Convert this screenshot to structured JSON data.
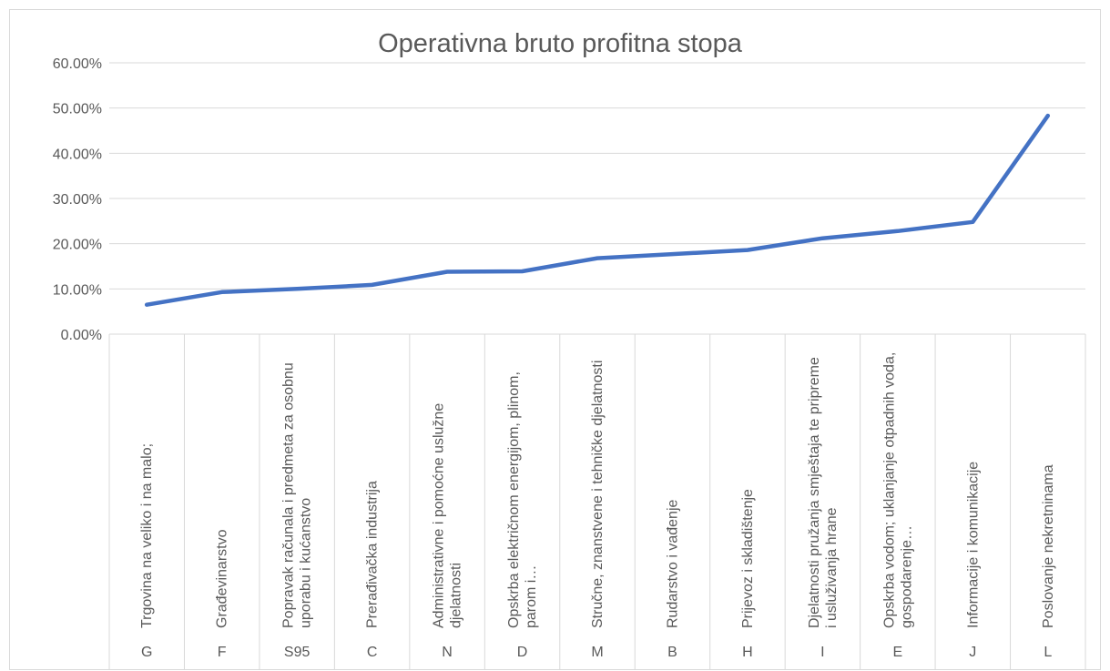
{
  "chart_data": {
    "type": "line",
    "title": "Operativna bruto profitna stopa",
    "categories": [
      "Trgovina na veliko i na malo;",
      "Građevinarstvo",
      "Popravak računala i predmeta za osobnu uporabu i kućanstvo",
      "Prerađivačka industrija",
      "Administrativne i pomoćne uslužne djelatnosti",
      "Opskrba električnom energijom, plinom, parom i…",
      "Stručne, znanstvene i tehničke djelatnosti",
      "Rudarstvo i vađenje",
      "Prijevoz i skladištenje",
      "Djelatnosti pružanja smještaja te pripreme i usluživanja hrane",
      "Opskrba vodom; uklanjanje otpadnih voda, gospodarenje…",
      "Informacije i komunikacije",
      "Poslovanje nekretninama"
    ],
    "category_codes": [
      "G",
      "F",
      "S95",
      "C",
      "N",
      "D",
      "M",
      "B",
      "H",
      "I",
      "E",
      "J",
      "L"
    ],
    "values": [
      6.5,
      9.3,
      10.0,
      10.9,
      13.8,
      13.9,
      16.8,
      17.7,
      18.6,
      21.2,
      22.8,
      24.8,
      48.3
    ],
    "color": "#4472c4",
    "ylim": [
      0,
      60
    ],
    "yticks": [
      {
        "value": 0,
        "label": "0.00%"
      },
      {
        "value": 10,
        "label": "10.00%"
      },
      {
        "value": 20,
        "label": "20.00%"
      },
      {
        "value": 30,
        "label": "30.00%"
      },
      {
        "value": 40,
        "label": "40.00%"
      },
      {
        "value": 50,
        "label": "50.00%"
      },
      {
        "value": 60,
        "label": "60.00%"
      }
    ],
    "grid": true
  }
}
